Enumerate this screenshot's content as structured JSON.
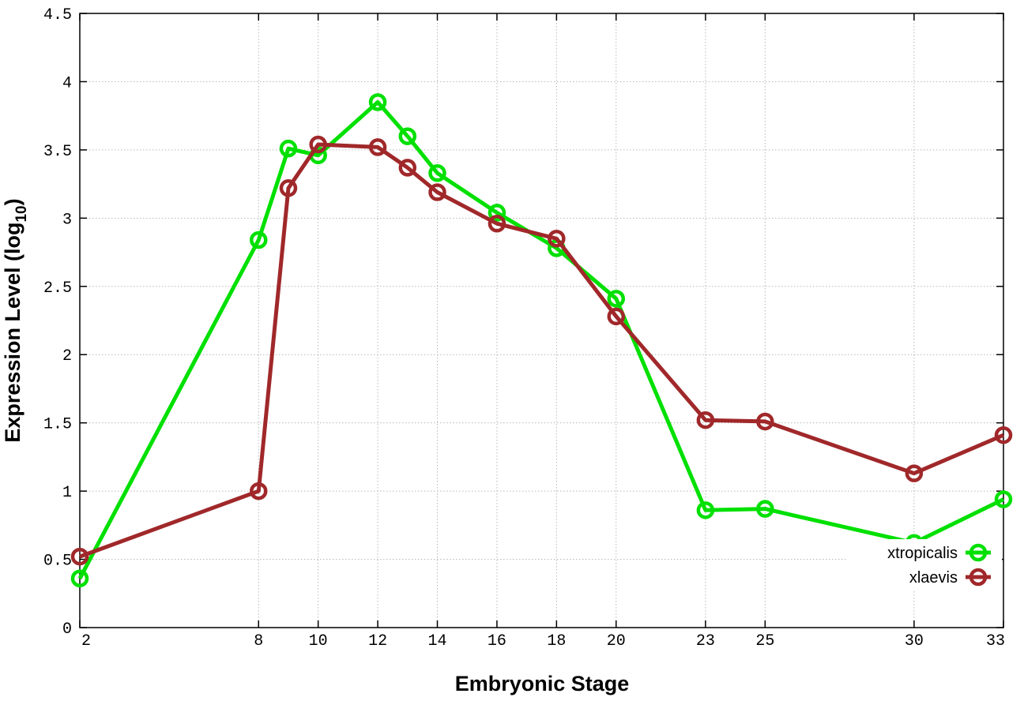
{
  "chart_data": {
    "type": "line",
    "xlabel": "Embryonic Stage",
    "ylabel": "Expression Level (log",
    "ylabel_sub": "10",
    "ylabel_suffix": ")",
    "xlim": [
      2,
      33
    ],
    "ylim": [
      0,
      4.5
    ],
    "xticks": [
      2,
      8,
      10,
      12,
      14,
      16,
      18,
      20,
      23,
      25,
      30,
      33
    ],
    "yticks": [
      0,
      0.5,
      1,
      1.5,
      2,
      2.5,
      3,
      3.5,
      4,
      4.5
    ],
    "ytick_labels": [
      "0",
      "0.5",
      "1",
      "1.5",
      "2",
      "2.5",
      "3",
      "3.5",
      "4",
      "4.5"
    ],
    "grid": true,
    "legend_position": "bottom-right",
    "series": [
      {
        "name": "xtropicalis",
        "color": "#00e000",
        "points": [
          [
            2,
            0.36
          ],
          [
            8,
            2.84
          ],
          [
            9,
            3.51
          ],
          [
            10,
            3.46
          ],
          [
            12,
            3.85
          ],
          [
            13,
            3.6
          ],
          [
            14,
            3.33
          ],
          [
            16,
            3.04
          ],
          [
            18,
            2.78
          ],
          [
            20,
            2.41
          ],
          [
            23,
            0.86
          ],
          [
            25,
            0.87
          ],
          [
            30,
            0.62
          ],
          [
            33,
            0.94
          ]
        ]
      },
      {
        "name": "xlaevis",
        "color": "#a0282a",
        "points": [
          [
            2,
            0.52
          ],
          [
            8,
            1.0
          ],
          [
            9,
            3.22
          ],
          [
            10,
            3.54
          ],
          [
            12,
            3.52
          ],
          [
            13,
            3.37
          ],
          [
            14,
            3.19
          ],
          [
            16,
            2.96
          ],
          [
            18,
            2.85
          ],
          [
            20,
            2.28
          ],
          [
            23,
            1.52
          ],
          [
            25,
            1.51
          ],
          [
            30,
            1.13
          ],
          [
            33,
            1.41
          ]
        ]
      }
    ]
  }
}
